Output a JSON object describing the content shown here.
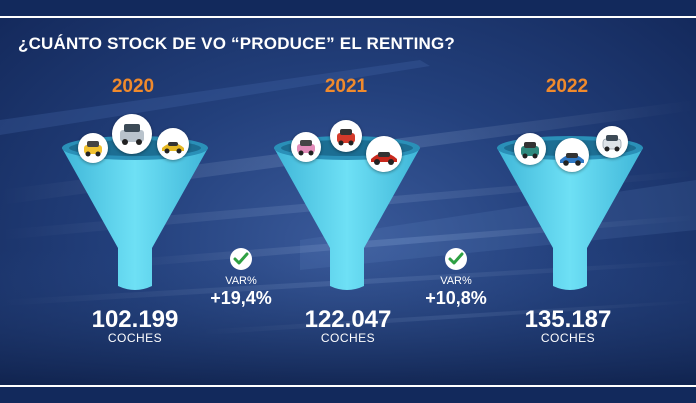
{
  "title": "¿CUÁNTO STOCK DE VO “PRODUCE” EL RENTING?",
  "colors": {
    "year": "#f08a2c",
    "funnel": "#5ad3ee",
    "check": "#2ea043",
    "background": "#23407c"
  },
  "funnels": [
    {
      "year": "2020",
      "value": "102.199",
      "unit": "COCHES",
      "cars": [
        "yellow-car-icon",
        "silver-suv-icon",
        "yellow-sportscar-icon"
      ]
    },
    {
      "year": "2021",
      "value": "122.047",
      "unit": "COCHES",
      "cars": [
        "pink-car-icon",
        "red-car-icon",
        "red-coupe-icon"
      ]
    },
    {
      "year": "2022",
      "value": "135.187",
      "unit": "COCHES",
      "cars": [
        "teal-suv-icon",
        "blue-car-icon",
        "white-suv-icon"
      ]
    }
  ],
  "variations": [
    {
      "label": "VAR%",
      "value": "+19,4%"
    },
    {
      "label": "VAR%",
      "value": "+10,8%"
    }
  ]
}
